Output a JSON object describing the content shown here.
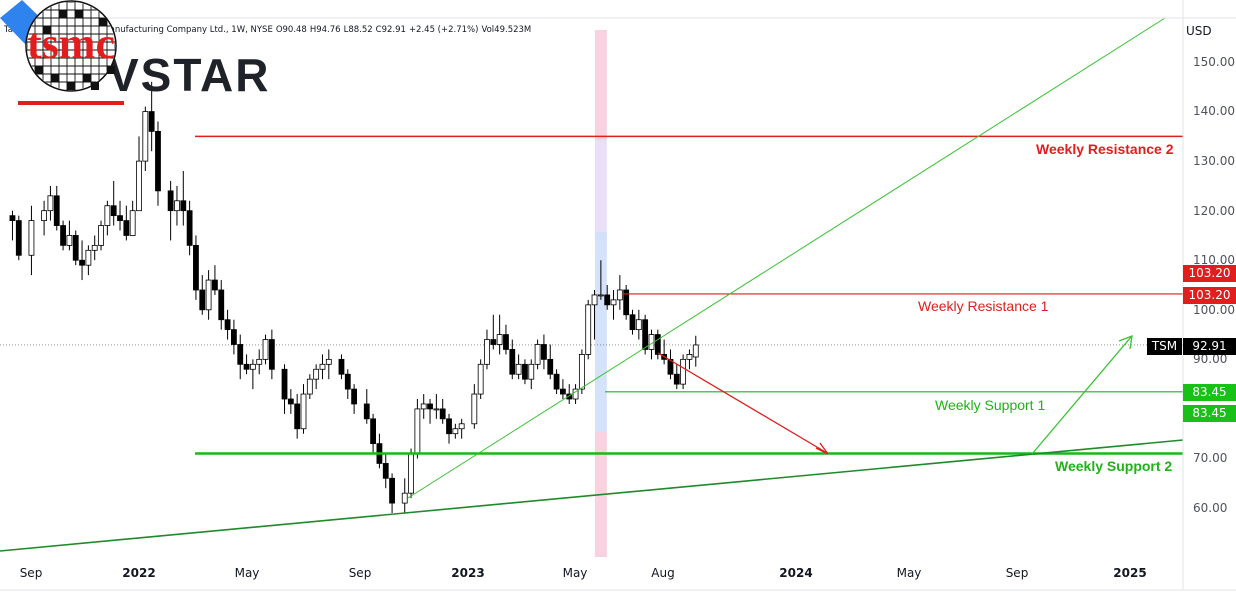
{
  "header": {
    "symbol_name": "Taiwan Semiconductor Manufacturing Company Ltd., 1W, NYSE",
    "open": "O90.48",
    "high": "H94.76",
    "low": "L88.52",
    "close": "C92.91",
    "change": "+2.45 (+2.71%)",
    "volume": "Vol49.523M"
  },
  "brand": {
    "logo_text": "VSTAR",
    "logo_color": "#2b7de9",
    "company_logo": "tsmc",
    "company_color": "#e11d1d"
  },
  "levels": {
    "weekly_resistance_2": "Weekly Resistance 2",
    "weekly_resistance_1": "Weekly Resistance 1",
    "weekly_support_1": "Weekly Support 1",
    "weekly_support_2": "Weekly Support 2"
  },
  "price_axis": {
    "currency": "USD",
    "ticks": [
      "150.00",
      "140.00",
      "130.00",
      "120.00",
      "110.00",
      "100.00",
      "90.00",
      "70.00",
      "60.00"
    ]
  },
  "time_axis": {
    "ticks": [
      "Sep",
      "2022",
      "May",
      "Sep",
      "2023",
      "May",
      "Aug",
      "2024",
      "May",
      "Sep",
      "2025"
    ]
  },
  "price_tags": {
    "resistance_a": "103.20",
    "resistance_b": "103.20",
    "symbol": "TSM",
    "last": "92.91",
    "support_a": "83.45",
    "support_b": "83.45"
  },
  "colors": {
    "resistance": "#e11d1d",
    "support": "#18b818",
    "candle_up": "#ffffff",
    "candle_down": "#000000"
  },
  "chart_data": {
    "type": "candlestick",
    "timeframe": "1W",
    "ylim": [
      50,
      157
    ],
    "x_range": [
      "2021-08-16",
      "2025-03-10"
    ],
    "horizontal_levels": [
      {
        "label": "Weekly Resistance 2",
        "value": 135
      },
      {
        "label": "Weekly Resistance 1",
        "value": 103.2
      },
      {
        "label": "Weekly Support 1",
        "value": 83.45
      },
      {
        "label": "Weekly Support 2",
        "value": 71
      }
    ],
    "last_price": 92.91,
    "candles": [
      [
        "2021-08-16",
        119,
        120,
        114,
        118
      ],
      [
        "2021-08-23",
        118,
        119,
        110,
        111
      ],
      [
        "2021-09-06",
        111,
        121,
        107,
        118
      ],
      [
        "2021-09-20",
        118,
        122,
        115,
        120
      ],
      [
        "2021-09-27",
        120,
        125,
        118,
        123
      ],
      [
        "2021-10-04",
        123,
        125,
        116,
        117
      ],
      [
        "2021-10-11",
        117,
        118,
        112,
        113
      ],
      [
        "2021-10-18",
        113,
        118,
        112,
        115
      ],
      [
        "2021-10-25",
        115,
        116,
        109,
        110
      ],
      [
        "2021-11-01",
        110,
        114,
        106,
        109
      ],
      [
        "2021-11-08",
        109,
        113,
        107,
        112
      ],
      [
        "2021-11-15",
        112,
        115,
        110,
        113
      ],
      [
        "2021-11-22",
        113,
        118,
        112,
        117
      ],
      [
        "2021-11-29",
        117,
        122,
        115,
        121
      ],
      [
        "2021-12-06",
        121,
        126,
        117,
        119
      ],
      [
        "2021-12-13",
        119,
        122,
        116,
        118
      ],
      [
        "2021-12-20",
        118,
        121,
        114,
        115
      ],
      [
        "2021-12-27",
        115,
        122,
        115,
        120
      ],
      [
        "2022-01-03",
        120,
        135,
        120,
        130
      ],
      [
        "2022-01-10",
        130,
        141,
        128,
        140
      ],
      [
        "2022-01-17",
        140,
        146,
        132,
        136
      ],
      [
        "2022-01-24",
        136,
        138,
        121,
        124
      ],
      [
        "2022-02-07",
        124,
        126,
        114,
        120
      ],
      [
        "2022-02-14",
        120,
        125,
        117,
        122
      ],
      [
        "2022-02-21",
        122,
        128,
        117,
        120
      ],
      [
        "2022-02-28",
        120,
        122,
        111,
        113
      ],
      [
        "2022-03-07",
        113,
        115,
        102,
        104
      ],
      [
        "2022-03-14",
        104,
        107,
        99,
        100
      ],
      [
        "2022-03-21",
        100,
        108,
        98,
        106
      ],
      [
        "2022-03-28",
        106,
        109,
        103,
        104
      ],
      [
        "2022-04-04",
        104,
        106,
        96,
        98
      ],
      [
        "2022-04-11",
        98,
        100,
        94,
        96
      ],
      [
        "2022-04-18",
        96,
        98,
        91,
        93
      ],
      [
        "2022-04-25",
        93,
        95,
        86,
        89
      ],
      [
        "2022-05-02",
        89,
        91,
        87,
        88
      ],
      [
        "2022-05-09",
        88,
        90,
        84,
        89
      ],
      [
        "2022-05-16",
        89,
        92,
        87,
        90
      ],
      [
        "2022-05-23",
        90,
        95,
        89,
        94
      ],
      [
        "2022-05-30",
        94,
        96,
        86,
        88
      ],
      [
        "2022-06-13",
        88,
        89,
        79,
        82
      ],
      [
        "2022-06-20",
        82,
        84,
        79,
        81
      ],
      [
        "2022-06-27",
        81,
        83,
        74,
        76
      ],
      [
        "2022-07-04",
        76,
        85,
        75,
        83
      ],
      [
        "2022-07-11",
        83,
        87,
        82,
        86
      ],
      [
        "2022-07-18",
        86,
        89,
        84,
        88
      ],
      [
        "2022-07-25",
        88,
        91,
        86,
        89
      ],
      [
        "2022-08-01",
        89,
        92,
        86,
        90
      ],
      [
        "2022-08-15",
        90,
        91,
        86,
        87
      ],
      [
        "2022-08-22",
        87,
        88,
        82,
        84
      ],
      [
        "2022-08-29",
        84,
        85,
        79,
        81
      ],
      [
        "2022-09-12",
        81,
        84,
        77,
        78
      ],
      [
        "2022-09-19",
        78,
        79,
        71,
        73
      ],
      [
        "2022-09-26",
        73,
        75,
        68,
        69
      ],
      [
        "2022-10-03",
        69,
        71,
        64,
        66
      ],
      [
        "2022-10-10",
        66,
        67,
        59,
        61
      ],
      [
        "2022-10-24",
        61,
        66,
        59,
        63
      ],
      [
        "2022-10-31",
        63,
        72,
        62,
        71
      ],
      [
        "2022-11-07",
        71,
        82,
        70,
        80
      ],
      [
        "2022-11-14",
        80,
        83,
        78,
        81
      ],
      [
        "2022-11-21",
        81,
        82,
        77,
        80
      ],
      [
        "2022-11-28",
        80,
        83,
        78,
        80
      ],
      [
        "2022-12-05",
        80,
        82,
        77,
        78
      ],
      [
        "2022-12-12",
        78,
        79,
        73,
        75
      ],
      [
        "2022-12-19",
        75,
        77,
        74,
        76
      ],
      [
        "2022-12-26",
        76,
        78,
        74,
        77
      ],
      [
        "2023-01-09",
        77,
        85,
        76,
        83
      ],
      [
        "2023-01-16",
        83,
        90,
        82,
        89
      ],
      [
        "2023-01-23",
        89,
        96,
        88,
        94
      ],
      [
        "2023-01-30",
        94,
        99,
        92,
        93
      ],
      [
        "2023-02-06",
        93,
        99,
        91,
        95
      ],
      [
        "2023-02-13",
        95,
        97,
        91,
        92
      ],
      [
        "2023-02-20",
        92,
        94,
        86,
        87
      ],
      [
        "2023-02-27",
        87,
        91,
        86,
        89
      ],
      [
        "2023-03-06",
        89,
        90,
        85,
        86
      ],
      [
        "2023-03-13",
        86,
        90,
        84,
        89
      ],
      [
        "2023-03-20",
        89,
        94,
        88,
        93
      ],
      [
        "2023-03-27",
        93,
        95,
        88,
        90
      ],
      [
        "2023-04-03",
        90,
        93,
        86,
        87
      ],
      [
        "2023-04-10",
        87,
        88,
        83,
        84
      ],
      [
        "2023-04-17",
        84,
        86,
        82,
        83
      ],
      [
        "2023-04-24",
        83,
        85,
        81,
        82
      ],
      [
        "2023-05-01",
        82,
        85,
        81,
        84
      ],
      [
        "2023-05-08",
        84,
        92,
        83,
        91
      ],
      [
        "2023-05-15",
        91,
        102,
        90,
        101
      ],
      [
        "2023-05-22",
        101,
        104,
        94,
        103
      ],
      [
        "2023-05-29",
        103,
        110,
        102,
        103
      ],
      [
        "2023-06-05",
        103,
        105,
        100,
        101
      ],
      [
        "2023-06-12",
        101,
        104,
        98,
        102
      ],
      [
        "2023-06-19",
        102,
        107,
        100,
        104
      ],
      [
        "2023-06-26",
        104,
        105,
        98,
        99
      ],
      [
        "2023-07-03",
        99,
        100,
        95,
        96
      ],
      [
        "2023-07-10",
        96,
        100,
        94,
        98
      ],
      [
        "2023-07-17",
        98,
        99,
        91,
        92
      ],
      [
        "2023-07-24",
        92,
        96,
        90,
        95
      ],
      [
        "2023-07-31",
        95,
        96,
        90,
        91
      ],
      [
        "2023-08-07",
        91,
        94,
        89,
        90
      ],
      [
        "2023-08-14",
        90,
        92,
        86,
        87
      ],
      [
        "2023-08-21",
        87,
        89,
        84,
        85
      ],
      [
        "2023-08-28",
        85,
        91,
        84,
        90
      ],
      [
        "2023-09-04",
        90,
        92,
        88,
        91
      ],
      [
        "2023-09-11",
        90.48,
        94.76,
        88.52,
        92.91
      ]
    ]
  }
}
